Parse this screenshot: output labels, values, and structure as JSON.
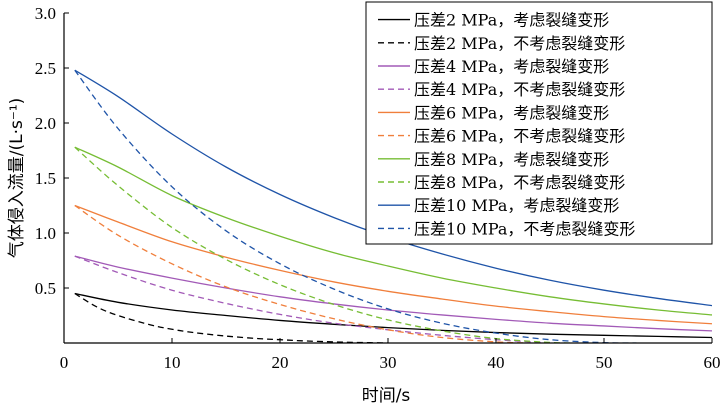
{
  "chart_data": {
    "type": "line",
    "title": "",
    "xlabel": "时间/s",
    "ylabel": "气体侵入流量/(L·s⁻¹)",
    "xlim": [
      0,
      60
    ],
    "ylim": [
      0,
      3.0
    ],
    "xticks": [
      0,
      10,
      20,
      30,
      40,
      50,
      60
    ],
    "yticks": [
      0.5,
      1.0,
      1.5,
      2.0,
      2.5,
      3.0
    ],
    "ytick_labels": [
      "0.5",
      "1.0",
      "1.5",
      "2.0",
      "2.5",
      "3.0"
    ],
    "grid": false,
    "legend_position": "top-right",
    "series": [
      {
        "name": "压差2 MPa，考虑裂缝变形",
        "color": "#000000",
        "dash": "solid",
        "x": [
          1,
          5,
          10,
          15,
          20,
          25,
          30,
          35,
          40,
          45,
          50,
          55,
          60
        ],
        "y": [
          0.45,
          0.37,
          0.3,
          0.25,
          0.205,
          0.17,
          0.14,
          0.115,
          0.095,
          0.08,
          0.07,
          0.06,
          0.05
        ]
      },
      {
        "name": "压差2 MPa，不考虑裂缝变形",
        "color": "#000000",
        "dash": "dashed",
        "x": [
          1,
          3,
          5,
          8,
          10,
          12,
          15,
          18,
          20,
          22,
          25,
          27,
          30
        ],
        "y": [
          0.45,
          0.33,
          0.25,
          0.165,
          0.125,
          0.095,
          0.063,
          0.04,
          0.03,
          0.02,
          0.01,
          0.005,
          0.0
        ]
      },
      {
        "name": "压差4 MPa，考虑裂缝变形",
        "color": "#a25ab7",
        "dash": "solid",
        "x": [
          1,
          5,
          10,
          15,
          20,
          25,
          30,
          35,
          40,
          45,
          50,
          55,
          60
        ],
        "y": [
          0.79,
          0.69,
          0.59,
          0.5,
          0.42,
          0.355,
          0.3,
          0.255,
          0.215,
          0.18,
          0.155,
          0.13,
          0.11
        ]
      },
      {
        "name": "压差4 MPa，不考虑裂缝变形",
        "color": "#a25ab7",
        "dash": "dashed",
        "x": [
          1,
          5,
          10,
          15,
          20,
          25,
          30,
          35,
          40,
          45
        ],
        "y": [
          0.79,
          0.64,
          0.48,
          0.36,
          0.26,
          0.18,
          0.12,
          0.07,
          0.03,
          0.0
        ]
      },
      {
        "name": "压差6 MPa，考虑裂缝变形",
        "color": "#f07f3c",
        "dash": "solid",
        "x": [
          1,
          5,
          10,
          15,
          20,
          25,
          30,
          35,
          40,
          45,
          50,
          55,
          60
        ],
        "y": [
          1.25,
          1.1,
          0.92,
          0.78,
          0.66,
          0.555,
          0.47,
          0.4,
          0.335,
          0.285,
          0.24,
          0.205,
          0.175
        ]
      },
      {
        "name": "压差6 MPa，不考虑裂缝变形",
        "color": "#f07f3c",
        "dash": "dashed",
        "x": [
          1,
          5,
          10,
          15,
          20,
          25,
          30,
          35,
          40,
          43
        ],
        "y": [
          1.25,
          0.98,
          0.72,
          0.51,
          0.35,
          0.22,
          0.12,
          0.05,
          0.01,
          0.0
        ]
      },
      {
        "name": "压差8 MPa，考虑裂缝变形",
        "color": "#76bd34",
        "dash": "solid",
        "x": [
          1,
          5,
          10,
          15,
          20,
          25,
          30,
          35,
          40,
          45,
          50,
          55,
          60
        ],
        "y": [
          1.78,
          1.6,
          1.34,
          1.14,
          0.97,
          0.82,
          0.7,
          0.59,
          0.5,
          0.42,
          0.355,
          0.3,
          0.255
        ]
      },
      {
        "name": "压差8 MPa，不考虑裂缝变形",
        "color": "#76bd34",
        "dash": "dashed",
        "x": [
          1,
          5,
          10,
          15,
          20,
          25,
          30,
          35,
          40,
          45,
          47
        ],
        "y": [
          1.78,
          1.43,
          1.05,
          0.76,
          0.53,
          0.35,
          0.21,
          0.11,
          0.04,
          0.005,
          0.0
        ]
      },
      {
        "name": "压差10 MPa，考虑裂缝变形",
        "color": "#1f54a8",
        "dash": "solid",
        "x": [
          1,
          5,
          10,
          15,
          20,
          25,
          30,
          35,
          40,
          45,
          50,
          55,
          60
        ],
        "y": [
          2.48,
          2.24,
          1.9,
          1.6,
          1.35,
          1.14,
          0.96,
          0.81,
          0.68,
          0.57,
          0.48,
          0.405,
          0.34
        ]
      },
      {
        "name": "压差10 MPa，不考虑裂缝变形",
        "color": "#1f54a8",
        "dash": "dashed",
        "x": [
          1,
          5,
          10,
          15,
          20,
          25,
          30,
          35,
          40,
          45,
          50,
          53
        ],
        "y": [
          2.48,
          1.95,
          1.42,
          1.02,
          0.72,
          0.49,
          0.31,
          0.18,
          0.09,
          0.03,
          0.003,
          0.0
        ]
      }
    ]
  }
}
